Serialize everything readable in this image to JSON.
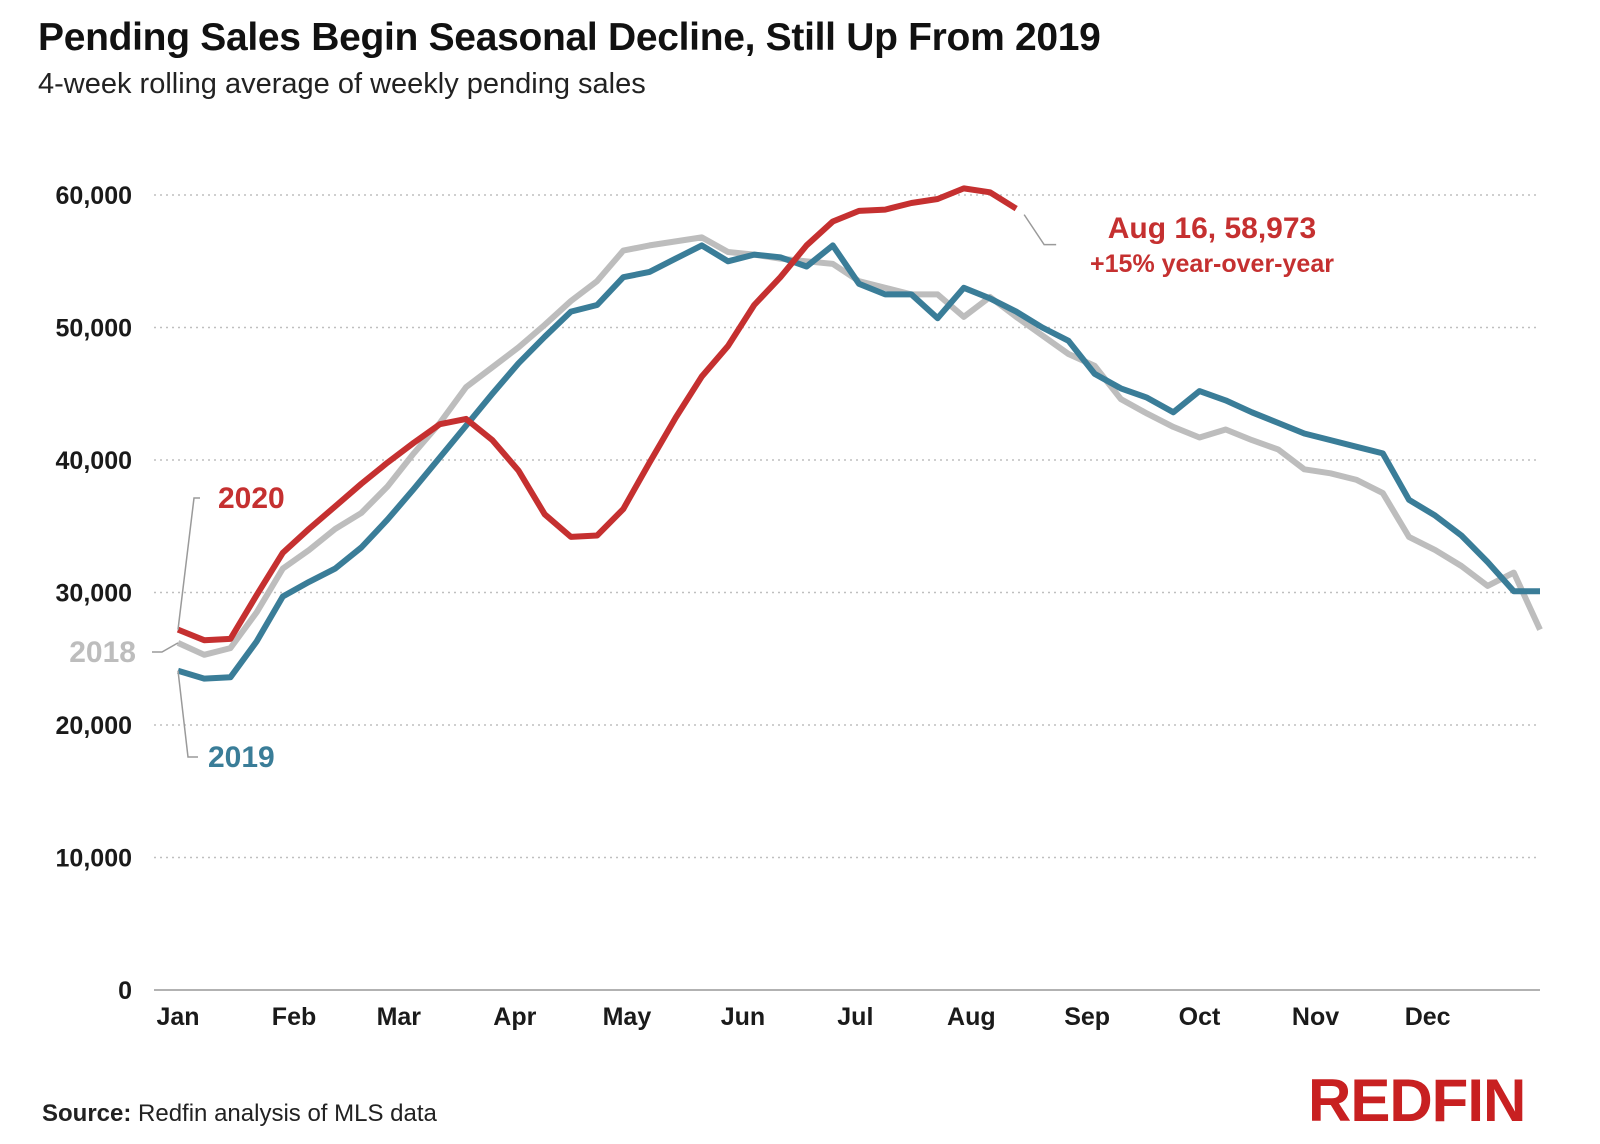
{
  "header": {
    "title": "Pending Sales Begin Seasonal Decline, Still Up From 2019",
    "subtitle": "4-week rolling average of weekly pending sales"
  },
  "footer": {
    "source_label": "Source:",
    "source_text": "Redfin analysis of MLS data",
    "logo_text": "REDFIN"
  },
  "colors": {
    "s2018": "#bdbdbd",
    "s2019": "#3a7d98",
    "s2020": "#c53030",
    "grid": "#bfbfbf",
    "axis": "#222222"
  },
  "chart_data": {
    "type": "line",
    "title": "Pending Sales Begin Seasonal Decline, Still Up From 2019",
    "subtitle": "4-week rolling average of weekly pending sales",
    "xlabel": "",
    "ylabel": "",
    "x_unit": "week of year",
    "xlim": [
      1,
      53
    ],
    "ylim": [
      0,
      60000
    ],
    "y_ticks": [
      0,
      10000,
      20000,
      30000,
      40000,
      50000,
      60000
    ],
    "y_tick_labels": [
      "0",
      "10,000",
      "20,000",
      "30,000",
      "40,000",
      "50,000",
      "60,000"
    ],
    "x_ticks": [
      {
        "label": "Jan",
        "week": 1
      },
      {
        "label": "Feb",
        "week": 5.43
      },
      {
        "label": "Mar",
        "week": 9.43
      },
      {
        "label": "Apr",
        "week": 13.86
      },
      {
        "label": "May",
        "week": 18.14
      },
      {
        "label": "Jun",
        "week": 22.57
      },
      {
        "label": "Jul",
        "week": 26.86
      },
      {
        "label": "Aug",
        "week": 31.29
      },
      {
        "label": "Sep",
        "week": 35.71
      },
      {
        "label": "Oct",
        "week": 40
      },
      {
        "label": "Nov",
        "week": 44.43
      },
      {
        "label": "Dec",
        "week": 48.71
      }
    ],
    "grid": true,
    "legend": "inline labels",
    "series": [
      {
        "name": "2018",
        "label": "2018",
        "x": [
          1,
          2,
          3,
          4,
          5,
          6,
          7,
          8,
          9,
          10,
          11,
          12,
          13,
          14,
          15,
          16,
          17,
          18,
          19,
          20,
          21,
          22,
          23,
          24,
          25,
          26,
          27,
          28,
          29,
          30,
          31,
          32,
          33,
          34,
          35,
          36,
          37,
          38,
          39,
          40,
          41,
          42,
          43,
          44,
          45,
          46,
          47,
          48,
          49,
          50,
          51,
          52,
          53
        ],
        "values": [
          26200,
          25300,
          25800,
          28500,
          31800,
          33200,
          34800,
          36000,
          38000,
          40500,
          42800,
          45500,
          47000,
          48500,
          50200,
          52000,
          53500,
          55800,
          56200,
          56500,
          56800,
          55700,
          55500,
          55200,
          55000,
          54800,
          53500,
          53000,
          52500,
          52500,
          50800,
          52300,
          50800,
          49400,
          48000,
          47100,
          44600,
          43500,
          42500,
          41700,
          42300,
          41500,
          40800,
          39300,
          39000,
          38500,
          37500,
          34200,
          33200,
          32000,
          30500,
          31500,
          27200
        ]
      },
      {
        "name": "2019",
        "label": "2019",
        "x": [
          1,
          2,
          3,
          4,
          5,
          6,
          7,
          8,
          9,
          10,
          11,
          12,
          13,
          14,
          15,
          16,
          17,
          18,
          19,
          20,
          21,
          22,
          23,
          24,
          25,
          26,
          27,
          28,
          29,
          30,
          31,
          32,
          33,
          34,
          35,
          36,
          37,
          38,
          39,
          40,
          41,
          42,
          43,
          44,
          45,
          46,
          47,
          48,
          49,
          50,
          51,
          52,
          53
        ],
        "values": [
          24100,
          23500,
          23600,
          26300,
          29700,
          30800,
          31800,
          33400,
          35500,
          37800,
          40200,
          42600,
          45000,
          47300,
          49300,
          51200,
          51700,
          53800,
          54200,
          55200,
          56200,
          55000,
          55500,
          55300,
          54600,
          56200,
          53300,
          52500,
          52500,
          50700,
          53000,
          52200,
          51200,
          50000,
          49000,
          46500,
          45400,
          44700,
          43600,
          45200,
          44500,
          43600,
          42800,
          42000,
          41500,
          41000,
          40500,
          37000,
          35800,
          34300,
          32300,
          30100,
          30100
        ]
      },
      {
        "name": "2020",
        "label": "2020",
        "annotation": "Aug 16, 58,973",
        "annotation_sub": "+15% year-over-year",
        "x": [
          1,
          2,
          3,
          4,
          5,
          6,
          7,
          8,
          9,
          10,
          11,
          12,
          13,
          14,
          15,
          16,
          17,
          18,
          19,
          20,
          21,
          22,
          23,
          24,
          25,
          26,
          27,
          28,
          29,
          30,
          31,
          32,
          33
        ],
        "values": [
          27200,
          26400,
          26500,
          29800,
          33000,
          34800,
          36500,
          38200,
          39800,
          41300,
          42700,
          43100,
          41500,
          39200,
          35900,
          34200,
          34300,
          36300,
          39800,
          43200,
          46300,
          48600,
          51700,
          53800,
          56200,
          58000,
          58800,
          58900,
          59400,
          59700,
          60500,
          60200,
          58973
        ]
      }
    ]
  }
}
